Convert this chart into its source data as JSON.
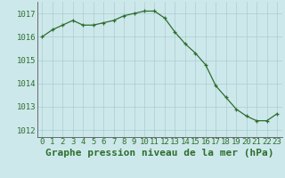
{
  "x": [
    0,
    1,
    2,
    3,
    4,
    5,
    6,
    7,
    8,
    9,
    10,
    11,
    12,
    13,
    14,
    15,
    16,
    17,
    18,
    19,
    20,
    21,
    22,
    23
  ],
  "y": [
    1016.0,
    1016.3,
    1016.5,
    1016.7,
    1016.5,
    1016.5,
    1016.6,
    1016.7,
    1016.9,
    1017.0,
    1017.1,
    1017.1,
    1016.8,
    1016.2,
    1015.7,
    1015.3,
    1014.8,
    1013.9,
    1013.4,
    1012.9,
    1012.6,
    1012.4,
    1012.4,
    1012.7
  ],
  "line_color": "#2d6e2d",
  "marker": "+",
  "bg_color": "#cde8eb",
  "grid_color": "#aacdd0",
  "xlabel": "Graphe pression niveau de la mer (hPa)",
  "yticks": [
    1012,
    1013,
    1014,
    1015,
    1016,
    1017
  ],
  "ylim": [
    1011.7,
    1017.5
  ],
  "xlim": [
    -0.5,
    23.5
  ],
  "tick_label_fontsize": 6.5,
  "xlabel_fontsize": 8.0
}
